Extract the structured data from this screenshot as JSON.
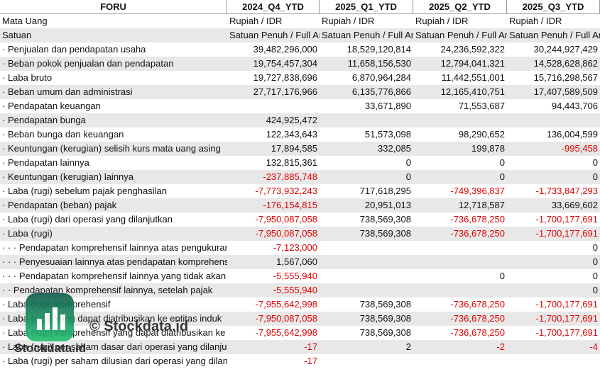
{
  "table": {
    "header": [
      "FORU",
      "2024_Q4_YTD",
      "2025_Q1_YTD",
      "2025_Q2_YTD",
      "2025_Q3_YTD"
    ],
    "rows": [
      [
        "Mata Uang",
        "Rupiah / IDR",
        "Rupiah / IDR",
        "Rupiah / IDR",
        "Rupiah / IDR"
      ],
      [
        "Satuan",
        "Satuan Penuh / Full Amount",
        "Satuan Penuh / Full Amount",
        "Satuan Penuh / Full Amount",
        "Satuan Penuh / Full Amount"
      ],
      [
        "· Penjualan dan pendapatan usaha",
        "39,482,296,000",
        "18,529,120,814",
        "24,236,592,322",
        "30,244,927,429"
      ],
      [
        "· Beban pokok penjualan dan pendapatan",
        "19,754,457,304",
        "11,658,156,530",
        "12,794,041,321",
        "14,528,628,862"
      ],
      [
        "· Laba bruto",
        "19,727,838,696",
        "6,870,964,284",
        "11,442,551,001",
        "15,716,298,567"
      ],
      [
        "· Beban umum dan administrasi",
        "27,717,176,966",
        "6,135,776,866",
        "12,165,410,751",
        "17,407,589,509"
      ],
      [
        "· Pendapatan keuangan",
        null,
        "33,671,890",
        "71,553,687",
        "94,443,706"
      ],
      [
        "· Pendapatan bunga",
        "424,925,472",
        null,
        null,
        null
      ],
      [
        "· Beban bunga dan keuangan",
        "122,343,643",
        "51,573,098",
        "98,290,652",
        "136,004,599"
      ],
      [
        "· Keuntungan (kerugian) selisih kurs mata uang asing",
        "17,894,585",
        "332,085",
        "199,878",
        "-995,458"
      ],
      [
        "· Pendapatan lainnya",
        "132,815,361",
        "0",
        "0",
        "0"
      ],
      [
        "· Keuntungan (kerugian) lainnya",
        "-237,885,748",
        "0",
        "0",
        "0"
      ],
      [
        "· Laba (rugi) sebelum pajak penghasilan",
        "-7,773,932,243",
        "717,618,295",
        "-749,396,837",
        "-1,733,847,293"
      ],
      [
        "· Pendapatan (beban) pajak",
        "-176,154,815",
        "20,951,013",
        "12,718,587",
        "33,669,602"
      ],
      [
        "· Laba (rugi) dari operasi yang dilanjutkan",
        "-7,950,087,058",
        "738,569,308",
        "-736,678,250",
        "-1,700,177,691"
      ],
      [
        "· Laba (rugi)",
        "-7,950,087,058",
        "738,569,308",
        "-736,678,250",
        "-1,700,177,691"
      ],
      [
        "· · · Pendapatan komprehensif lainnya atas pengukuran kembali",
        "-7,123,000",
        null,
        null,
        "0"
      ],
      [
        "· · · Penyesuaian lainnya atas pendapatan komprehensif lainnya",
        "1,567,060",
        null,
        null,
        "0"
      ],
      [
        "· · · Pendapatan komprehensif lainnya yang tidak akan direklasifikasi",
        "-5,555,940",
        null,
        "0",
        "0"
      ],
      [
        "· · Pendapatan komprehensif lainnya, setelah pajak",
        "-5,555,940",
        null,
        null,
        "0"
      ],
      [
        "· Laba (rugi) komprehensif",
        "-7,955,642,998",
        "738,569,308",
        "-736,678,250",
        "-1,700,177,691"
      ],
      [
        "· Laba (rugi) yang dapat diatribusikan ke entitas induk",
        "-7,950,087,058",
        "738,569,308",
        "-736,678,250",
        "-1,700,177,691"
      ],
      [
        "· Laba (rugi) komprehensif yang dapat diatribusikan ke entitas induk",
        "-7,955,642,998",
        "738,569,308",
        "-736,678,250",
        "-1,700,177,691"
      ],
      [
        "· Laba (rugi) per saham dasar dari operasi yang dilanjutkan",
        "-17",
        "2",
        "-2",
        "-4"
      ],
      [
        "· Laba (rugi) per saham dilusian dari operasi yang dilanjutkan",
        "-17",
        null,
        null,
        null
      ]
    ]
  },
  "watermark": {
    "text": "© Stockdata.id",
    "logo_text": "Stockdata.id"
  }
}
